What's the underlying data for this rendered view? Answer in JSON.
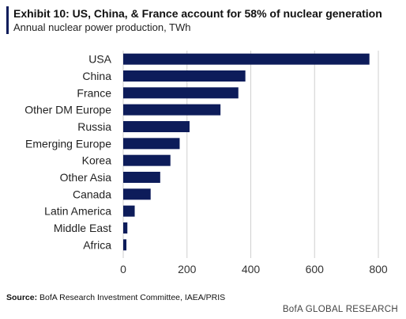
{
  "header": {
    "title": "Exhibit 10: US, China, & France account for 58% of nuclear generation",
    "subtitle": "Annual nuclear power production, TWh"
  },
  "chart_data": {
    "type": "bar",
    "orientation": "horizontal",
    "title": "Exhibit 10: US, China, & France account for 58% of nuclear generation",
    "subtitle": "Annual nuclear power production, TWh",
    "categories": [
      "USA",
      "China",
      "France",
      "Other DM Europe",
      "Russia",
      "Emerging Europe",
      "Korea",
      "Other Asia",
      "Canada",
      "Latin America",
      "Middle East",
      "Africa"
    ],
    "values": [
      772,
      383,
      361,
      305,
      208,
      177,
      148,
      116,
      86,
      36,
      13,
      10
    ],
    "xlim": [
      0,
      800
    ],
    "xticks": [
      "0",
      "200",
      "400",
      "600",
      "800"
    ],
    "grid": true,
    "bar_color": "#0d1c5a",
    "grid_color": "#cfcfcf"
  },
  "footer": {
    "source_label": "Source:",
    "source_text": " BofA Research Investment Committee, IAEA/PRIS",
    "brand": "BofA GLOBAL RESEARCH"
  }
}
